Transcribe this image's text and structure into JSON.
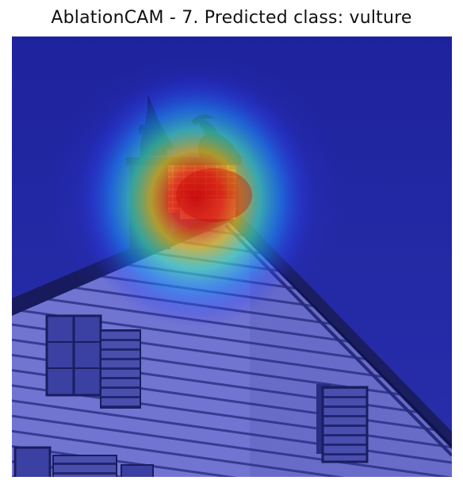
{
  "figure": {
    "title": "AblationCAM - 7. Predicted class: vulture"
  },
  "image": {
    "colors": {
      "sky": "#252a9e",
      "sky_dark": "#1c2190",
      "siding": "#7f83cf",
      "siding_line": "#3b3f82",
      "window": "#454a98",
      "window_dark": "#2b2f70",
      "roof_edge": "#15173f",
      "silhouette": "#0c1238",
      "brick": "#c2584f"
    },
    "heatmap": {
      "colormap": "jet",
      "overlay_alpha": 0.5
    }
  }
}
